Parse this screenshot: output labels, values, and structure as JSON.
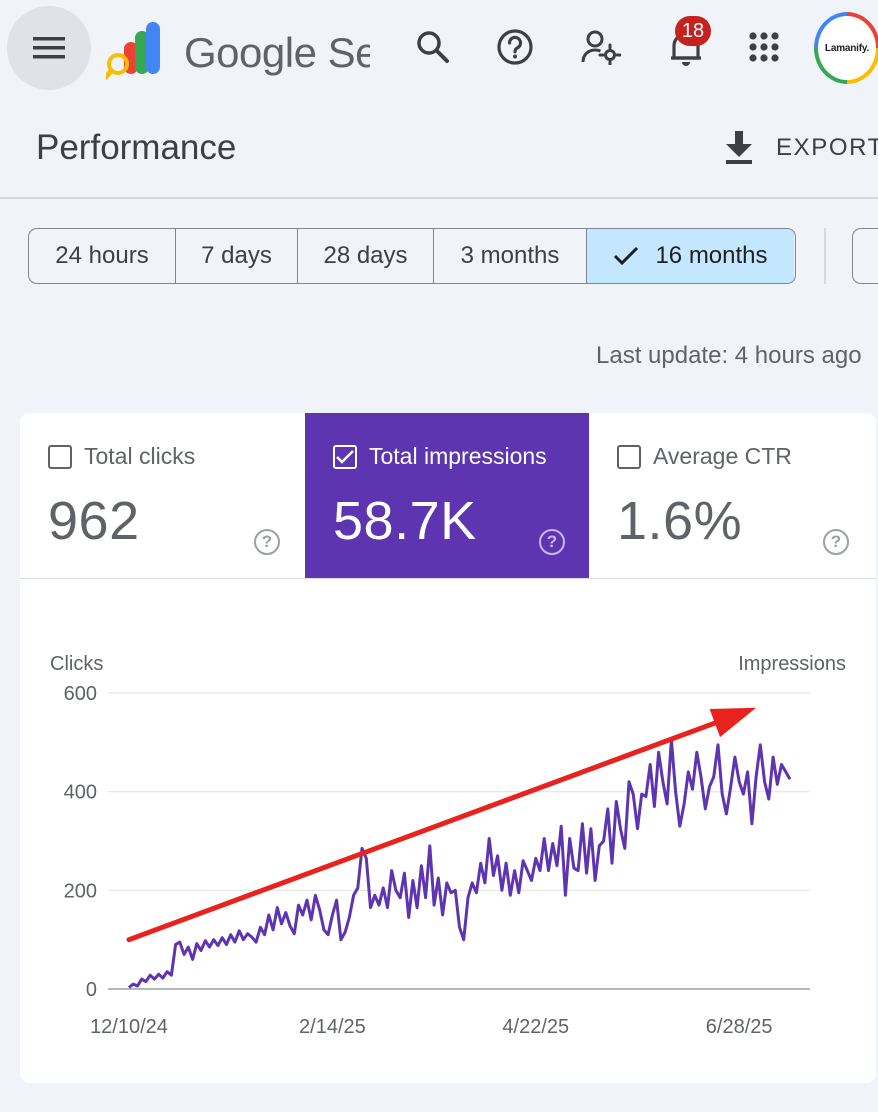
{
  "app": {
    "product_name": "Google Search Console",
    "notification_count": "18",
    "avatar_text": "Lamanify."
  },
  "icons": {
    "menu": "menu-icon",
    "search": "search-icon",
    "help": "help-icon",
    "admin": "manage-accounts-icon",
    "notifications": "bell-icon",
    "apps": "apps-grid-icon",
    "export": "download-icon"
  },
  "page": {
    "title": "Performance",
    "export_label": "EXPORT",
    "last_update": "Last update: 4 hours ago"
  },
  "date_filters": [
    {
      "label": "24 hours",
      "selected": false
    },
    {
      "label": "7 days",
      "selected": false
    },
    {
      "label": "28 days",
      "selected": false
    },
    {
      "label": "3 months",
      "selected": false
    },
    {
      "label": "16 months",
      "selected": true
    }
  ],
  "metrics": [
    {
      "label": "Total clicks",
      "value": "962",
      "checked": false
    },
    {
      "label": "Total impressions",
      "value": "58.7K",
      "checked": true
    },
    {
      "label": "Average CTR",
      "value": "1.6%",
      "checked": false
    }
  ],
  "colors": {
    "impressions": "#5e35b1",
    "selected_chip": "#c2e7ff",
    "trend_arrow": "#e8231f",
    "badge": "#c5221f"
  },
  "chart_data": {
    "type": "line",
    "left_axis_label": "Clicks",
    "right_axis_label": "Impressions",
    "y_ticks": [
      "600",
      "400",
      "200",
      "0"
    ],
    "ylim": [
      0,
      600
    ],
    "x_ticks": [
      "12/10/24",
      "2/14/25",
      "4/22/25",
      "6/28/25"
    ],
    "grid": true,
    "series": [
      {
        "name": "Impressions",
        "color": "#5e35b1",
        "values": [
          3,
          10,
          6,
          20,
          15,
          28,
          20,
          30,
          22,
          35,
          28,
          90,
          95,
          70,
          85,
          60,
          92,
          78,
          98,
          85,
          100,
          88,
          104,
          90,
          110,
          95,
          118,
          100,
          112,
          105,
          95,
          125,
          110,
          150,
          120,
          165,
          132,
          155,
          128,
          112,
          170,
          150,
          180,
          140,
          190,
          160,
          120,
          110,
          150,
          180,
          100,
          115,
          145,
          190,
          205,
          285,
          265,
          165,
          190,
          170,
          205,
          165,
          240,
          200,
          185,
          235,
          145,
          220,
          165,
          250,
          185,
          290,
          170,
          225,
          150,
          215,
          195,
          200,
          125,
          100,
          185,
          215,
          195,
          255,
          215,
          305,
          230,
          270,
          200,
          255,
          190,
          240,
          195,
          260,
          240,
          220,
          265,
          240,
          305,
          240,
          295,
          250,
          330,
          190,
          305,
          245,
          240,
          335,
          235,
          325,
          220,
          290,
          300,
          365,
          255,
          380,
          325,
          285,
          420,
          395,
          325,
          395,
          390,
          455,
          370,
          480,
          420,
          375,
          505,
          400,
          330,
          375,
          440,
          405,
          480,
          430,
          365,
          410,
          430,
          495,
          395,
          355,
          410,
          470,
          420,
          395,
          440,
          335,
          430,
          495,
          420,
          385,
          470,
          415,
          455,
          440,
          425
        ]
      }
    ],
    "annotations": [
      {
        "type": "trend-arrow",
        "color": "#e8231f",
        "from": [
          0,
          100
        ],
        "to": [
          148,
          570
        ]
      }
    ]
  }
}
